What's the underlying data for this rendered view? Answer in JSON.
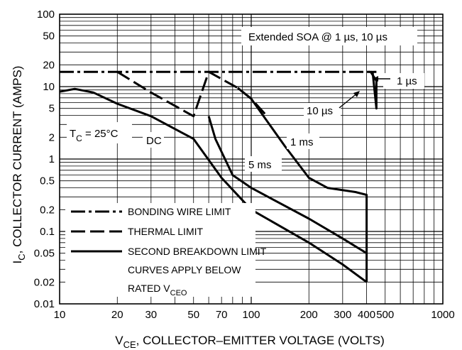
{
  "chart_data": {
    "type": "line",
    "xscale": "log",
    "yscale": "log",
    "xlim": [
      10,
      1000
    ],
    "ylim": [
      0.01,
      100
    ],
    "grid": true,
    "xlabel_parts": {
      "main": "V",
      "sub": "CE",
      "rest": ", COLLECTOR–EMITTER VOLTAGE (VOLTS)"
    },
    "ylabel_parts": {
      "main": "I",
      "sub": "C",
      "rest": ", COLLECTOR CURRENT (AMPS)"
    },
    "x_ticks": [
      10,
      20,
      30,
      50,
      70,
      100,
      200,
      300,
      400,
      500,
      1000
    ],
    "x_tick_labels": [
      "10",
      "20",
      "30",
      "50",
      "70",
      "100",
      "200",
      "300",
      "400",
      "500",
      "1000"
    ],
    "y_ticks": [
      0.01,
      0.02,
      0.05,
      0.1,
      0.2,
      0.5,
      1,
      2,
      5,
      10,
      20,
      50,
      100
    ],
    "y_tick_labels": [
      "0.01",
      "0.02",
      "0.05",
      "0.1",
      "0.2",
      "0.5",
      "1",
      "2",
      "5",
      "10",
      "20",
      "50",
      "100"
    ],
    "series": [
      {
        "style": "dash-dot",
        "label": "BONDING WIRE LIMIT",
        "x": [
          10,
          18.5,
          20,
          60,
          120,
          450
        ],
        "y": [
          16,
          16,
          16,
          16,
          16,
          16
        ]
      },
      {
        "style": "dashed",
        "label": "THERMAL LIMIT",
        "x": [
          20,
          30,
          50,
          60,
          85,
          100,
          120
        ],
        "y": [
          16,
          8.3,
          3.9,
          16,
          9.6,
          6.8,
          4
        ]
      },
      {
        "style": "solid",
        "label": "DC",
        "x": [
          10,
          12,
          15,
          20,
          30,
          50,
          70,
          100,
          200,
          300,
          400
        ],
        "y": [
          8.5,
          9.3,
          8.3,
          5.8,
          3.9,
          1.9,
          0.55,
          0.2,
          0.07,
          0.035,
          0.02
        ]
      },
      {
        "style": "solid",
        "label": "5 ms",
        "x": [
          60,
          65,
          80,
          100,
          200,
          300,
          400
        ],
        "y": [
          3.9,
          1.9,
          0.6,
          0.4,
          0.15,
          0.08,
          0.05
        ]
      },
      {
        "style": "solid",
        "label": "1 ms",
        "x": [
          85,
          100,
          150,
          200,
          250,
          350,
          400,
          400
        ],
        "y": [
          9.6,
          6.8,
          1.5,
          0.55,
          0.4,
          0.35,
          0.32,
          0.02
        ]
      },
      {
        "style": "solid",
        "label": "10 µs / 1 µs",
        "x": [
          410,
          420,
          450,
          450,
          430,
          410
        ],
        "y": [
          16,
          16,
          12,
          5,
          16,
          16
        ]
      }
    ],
    "annotations": {
      "extended_soa": "Extended SOA @ 1 µs, 10 µs",
      "one_us": "1 µs",
      "ten_us": "10 µs",
      "one_ms": "1 ms",
      "five_ms": "5 ms",
      "dc": "DC",
      "tc_main": "T",
      "tc_sub": "C",
      "tc_rest": " = 25°C"
    },
    "legend": {
      "placement": "bottom-left",
      "bonding": "BONDING WIRE LIMIT",
      "thermal": "THERMAL LIMIT",
      "second": "SECOND BREAKDOWN LIMIT",
      "note1": "CURVES APPLY BELOW",
      "note2_main": "RATED V",
      "note2_sub": "CEO"
    }
  }
}
